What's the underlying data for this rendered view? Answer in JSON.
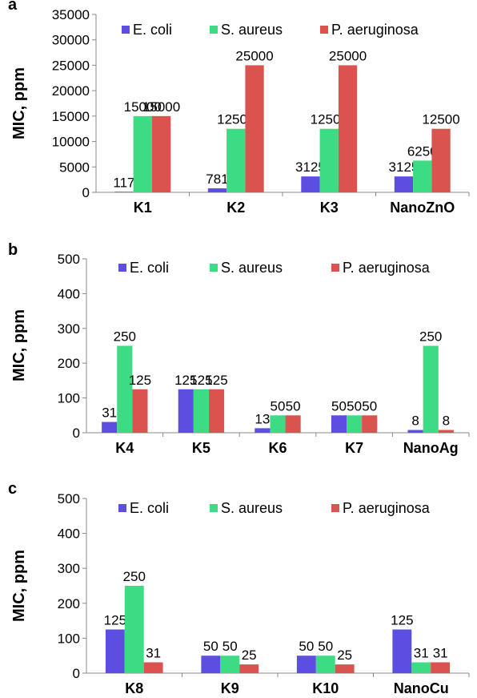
{
  "chart_data": [
    {
      "panel_label": "a",
      "type": "bar",
      "ylabel": "MIC, ppm",
      "ylim": [
        0,
        35000
      ],
      "yticks": [
        0,
        5000,
        10000,
        15000,
        20000,
        25000,
        30000,
        35000
      ],
      "grid": false,
      "legend_position": "top",
      "categories": [
        "K1",
        "K2",
        "K3",
        "NanoZnO"
      ],
      "series": [
        {
          "name": "E. coli",
          "color": "#5b4ee0",
          "values": [
            117,
            781,
            3125,
            3125
          ]
        },
        {
          "name": "S. aureus",
          "color": "#3ddc84",
          "values": [
            15000,
            12500,
            12500,
            6250
          ]
        },
        {
          "name": "P. aeruginosa",
          "color": "#d9534f",
          "values": [
            15000,
            25000,
            25000,
            12500
          ]
        }
      ]
    },
    {
      "panel_label": "b",
      "type": "bar",
      "ylabel": "MIC, ppm",
      "ylim": [
        0,
        500
      ],
      "yticks": [
        0,
        100,
        200,
        300,
        400,
        500
      ],
      "grid": false,
      "legend_position": "top",
      "categories": [
        "K4",
        "K5",
        "K6",
        "K7",
        "NanoAg"
      ],
      "series": [
        {
          "name": "E. coli",
          "color": "#5b4ee0",
          "values": [
            31,
            125,
            13,
            50,
            8
          ]
        },
        {
          "name": "S. aureus",
          "color": "#3ddc84",
          "values": [
            250,
            125,
            50,
            50,
            250
          ]
        },
        {
          "name": "P. aeruginosa",
          "color": "#d9534f",
          "values": [
            125,
            125,
            50,
            50,
            8
          ]
        }
      ]
    },
    {
      "panel_label": "c",
      "type": "bar",
      "ylabel": "MIC, ppm",
      "ylim": [
        0,
        500
      ],
      "yticks": [
        0,
        100,
        200,
        300,
        400,
        500
      ],
      "grid": false,
      "legend_position": "top",
      "categories": [
        "K8",
        "K9",
        "K10",
        "NanoCu"
      ],
      "series": [
        {
          "name": "E. coli",
          "color": "#5b4ee0",
          "values": [
            125,
            50,
            50,
            125
          ]
        },
        {
          "name": "S. aureus",
          "color": "#3ddc84",
          "values": [
            250,
            50,
            50,
            31
          ]
        },
        {
          "name": "P. aeruginosa",
          "color": "#d9534f",
          "values": [
            31,
            25,
            25,
            31
          ]
        }
      ]
    }
  ]
}
